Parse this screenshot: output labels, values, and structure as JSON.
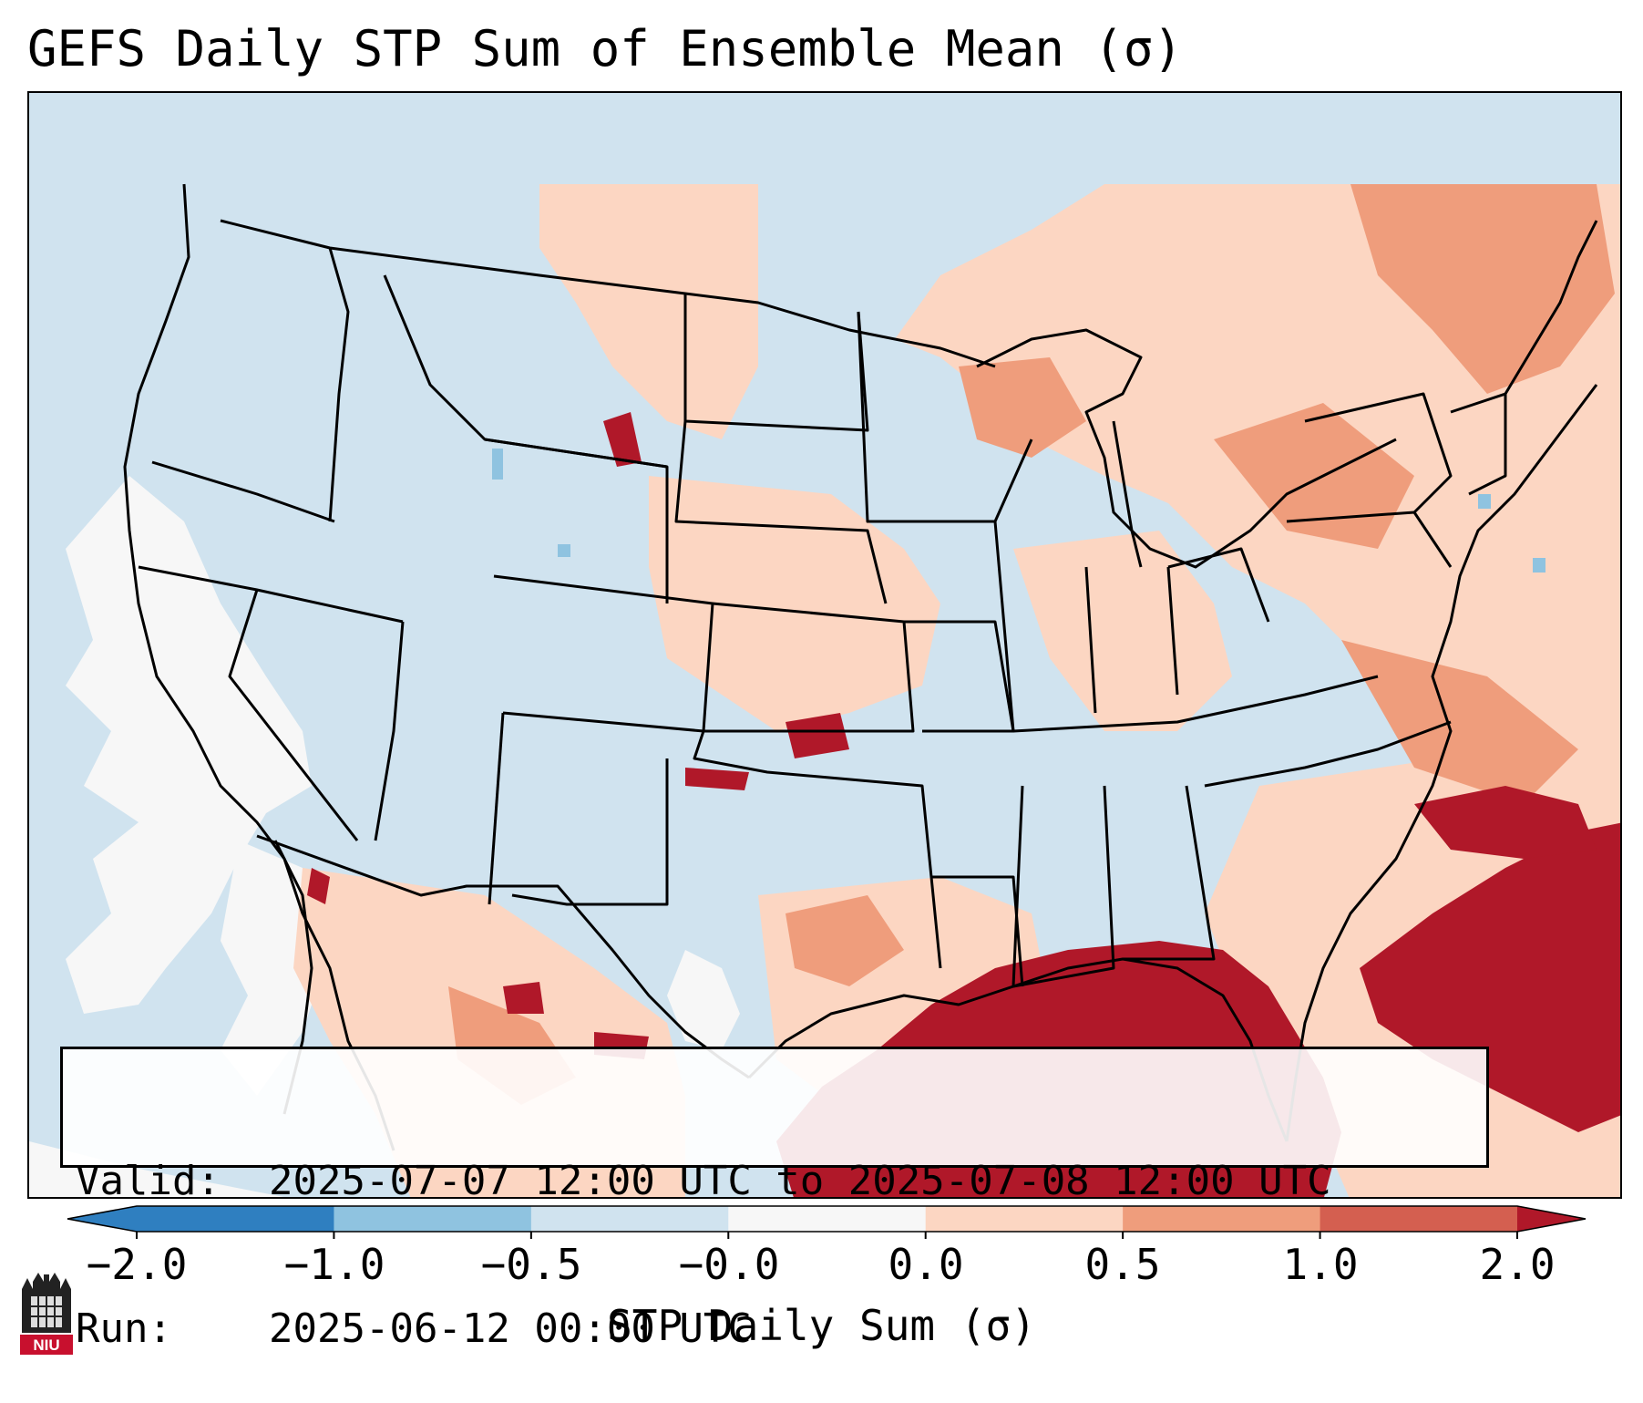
{
  "title": "GEFS Daily STP Sum of Ensemble Mean (σ)",
  "info": {
    "valid_label": "Valid:",
    "valid_value": "2025-07-07 12:00 UTC to 2025-07-08 12:00 UTC",
    "run_label": "Run:",
    "run_value": "2025-06-12 00:00 UTC"
  },
  "colorbar": {
    "label": "STP Daily Sum (σ)",
    "ticks": [
      "−2.0",
      "−1.0",
      "−0.5",
      "−0.0",
      "0.0",
      "0.5",
      "1.0",
      "2.0"
    ],
    "colors": [
      "#2f7fc0",
      "#8fc3e0",
      "#d0e3ef",
      "#f7f7f7",
      "#fcd6c2",
      "#ef9d7c",
      "#d45f50",
      "#b01829"
    ],
    "extend": "both"
  },
  "map": {
    "projection": "Lambert Conformal (CONUS)",
    "field": "STP Daily Sum anomaly (σ)",
    "highest_regions": [
      "Gulf of Mexico",
      "Western Atlantic off Southeast coast",
      "Florida"
    ],
    "elevated_regions": [
      "Northeast US",
      "Great Lakes",
      "Upper Midwest",
      "Southern Plains",
      "Northern Mexico"
    ],
    "near_zero_regions": [
      "Eastern Pacific",
      "Intermountain West"
    ]
  },
  "logo": {
    "text": "NIU",
    "color": "#c8102e"
  }
}
